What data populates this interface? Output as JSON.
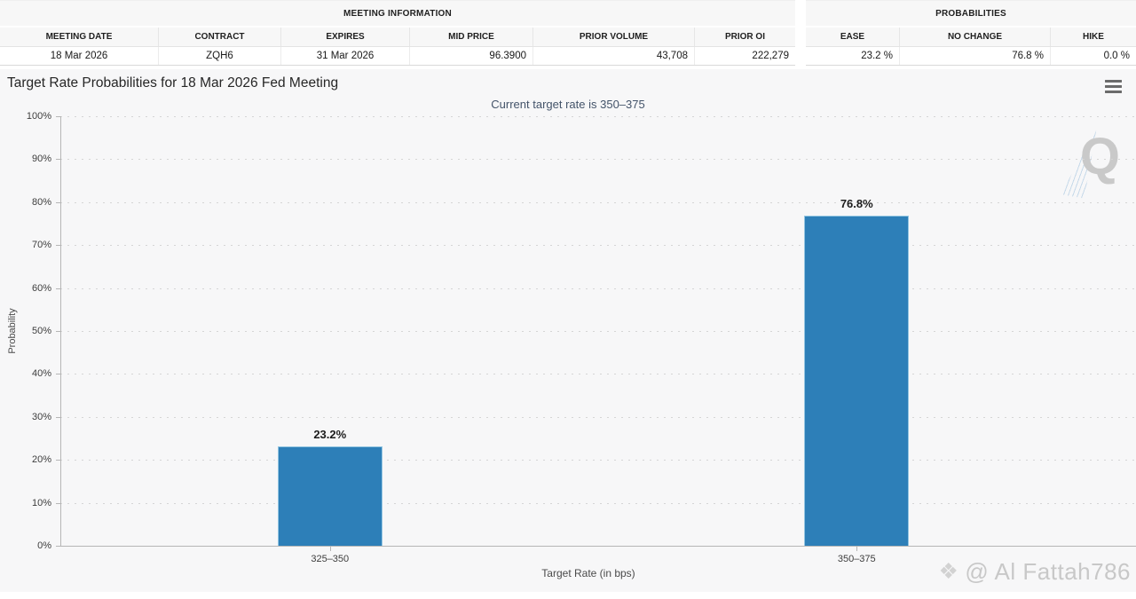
{
  "meeting_info": {
    "title": "MEETING INFORMATION",
    "columns": [
      "MEETING DATE",
      "CONTRACT",
      "EXPIRES",
      "MID PRICE",
      "PRIOR VOLUME",
      "PRIOR OI"
    ],
    "values": [
      "18 Mar 2026",
      "ZQH6",
      "31 Mar 2026",
      "96.3900",
      "43,708",
      "222,279"
    ]
  },
  "probabilities": {
    "title": "PROBABILITIES",
    "columns": [
      "EASE",
      "NO CHANGE",
      "HIKE"
    ],
    "values": [
      "23.2 %",
      "76.8 %",
      "0.0 %"
    ]
  },
  "chart": {
    "title": "Target Rate Probabilities for 18 Mar 2026 Fed Meeting",
    "subtitle": "Current target rate is 350–375",
    "menu_icon": "hamburger-icon"
  },
  "chart_data": {
    "type": "bar",
    "title": "Target Rate Probabilities for 18 Mar 2026 Fed Meeting",
    "subtitle": "Current target rate is 350–375",
    "categories": [
      "325–350",
      "350–375"
    ],
    "values": [
      23.2,
      76.8
    ],
    "point_labels": [
      "23.2%",
      "76.8%"
    ],
    "xlabel": "Target Rate (in bps)",
    "ylabel": "Probability",
    "ylim": [
      0,
      100
    ],
    "ytick_step": 10,
    "ytick_suffix": "%",
    "grid": "dotted-horizontal",
    "legend": "none",
    "bar_color": "#2d7fb8"
  },
  "watermarks": {
    "logo_letter": "Q",
    "credit_icon": "❖",
    "credit_text": "@ Al Fattah786"
  }
}
